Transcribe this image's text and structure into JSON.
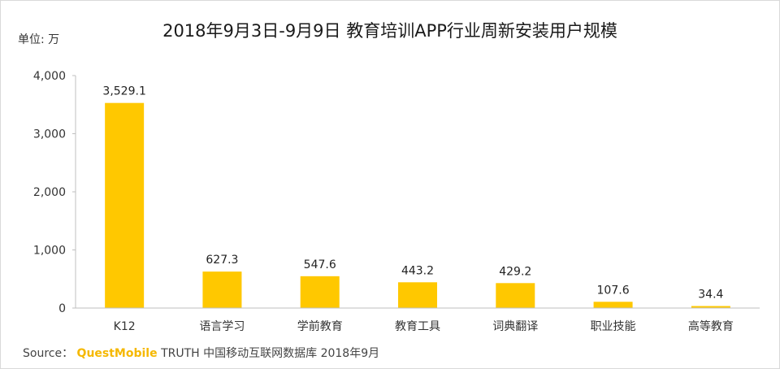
{
  "title": "2018年9月3日-9月9日 教育培训APP行业周新安装用户规模",
  "unit_label": "单位: 万",
  "source": {
    "prefix": "Source：",
    "brand": "QuestMobile",
    "suffix": "TRUTH 中国移动互联网数据库 2018年9月"
  },
  "colors": {
    "bar": "#FFC800",
    "axis": "#bfbfbf",
    "text": "#222222"
  },
  "chart_data": {
    "type": "bar",
    "title": "2018年9月3日-9月9日 教育培训APP行业周新安装用户规模",
    "xlabel": "",
    "ylabel": "单位: 万",
    "categories": [
      "K12",
      "语言学习",
      "学前教育",
      "教育工具",
      "词典翻译",
      "职业技能",
      "高等教育"
    ],
    "values": [
      3529.1,
      627.3,
      547.6,
      443.2,
      429.2,
      107.6,
      34.4
    ],
    "value_labels": [
      "3,529.1",
      "627.3",
      "547.6",
      "443.2",
      "429.2",
      "107.6",
      "34.4"
    ],
    "ylim": [
      0,
      4000
    ],
    "yticks": [
      0,
      1000,
      2000,
      3000,
      4000
    ],
    "ytick_labels": [
      "0",
      "1,000",
      "2,000",
      "3,000",
      "4,000"
    ],
    "grid": false,
    "legend": "none"
  }
}
